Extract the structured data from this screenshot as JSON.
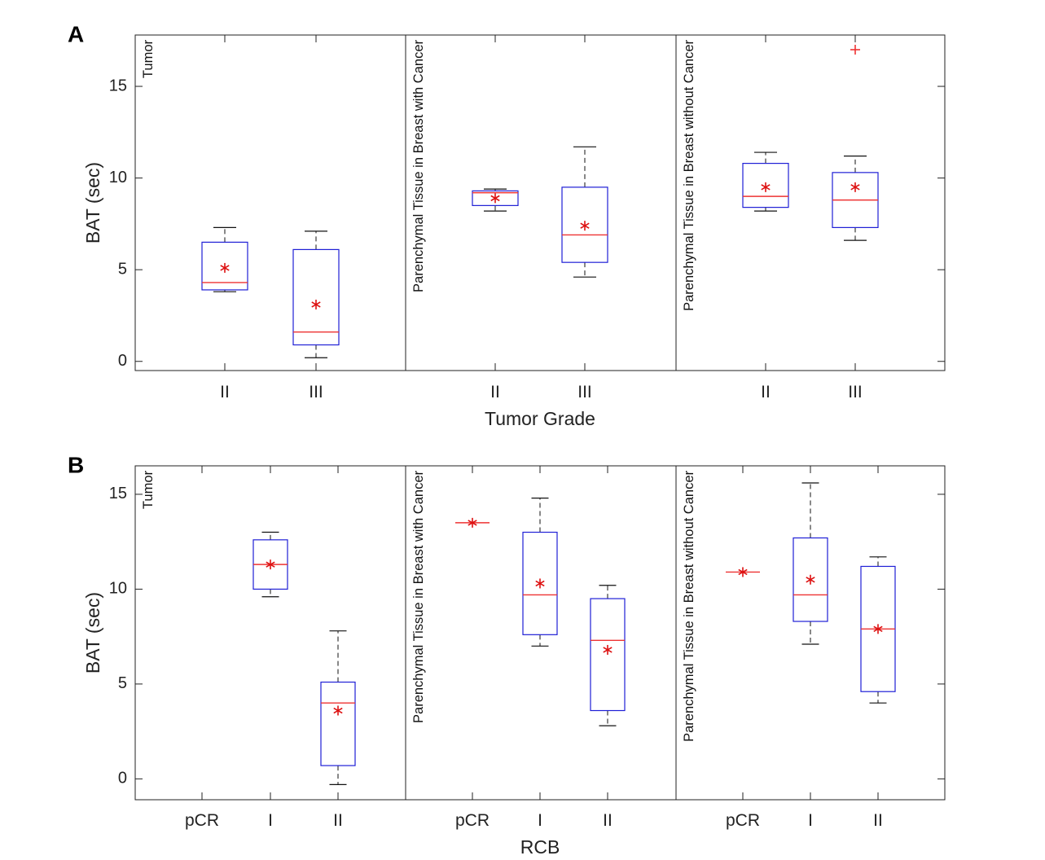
{
  "chart_data": [
    {
      "panel": "A",
      "type": "box",
      "ylabel": "BAT (sec)",
      "xlabel": "Tumor Grade",
      "ylim": [
        -0.5,
        17.8
      ],
      "yticks": [
        0,
        5,
        10,
        15
      ],
      "groups": [
        {
          "name": "Tumor",
          "categories": [
            "II",
            "III"
          ],
          "boxes": [
            {
              "category": "II",
              "whisker_low": 3.8,
              "q1": 3.9,
              "median": 4.3,
              "q3": 6.5,
              "whisker_high": 7.3,
              "mean": 5.1,
              "outliers": []
            },
            {
              "category": "III",
              "whisker_low": 0.2,
              "q1": 0.9,
              "median": 1.6,
              "q3": 6.1,
              "whisker_high": 7.1,
              "mean": 3.1,
              "outliers": []
            }
          ]
        },
        {
          "name": "Parenchymal Tissue in Breast with Cancer",
          "categories": [
            "II",
            "III"
          ],
          "boxes": [
            {
              "category": "II",
              "whisker_low": 8.2,
              "q1": 8.5,
              "median": 9.2,
              "q3": 9.3,
              "whisker_high": 9.4,
              "mean": 8.9,
              "outliers": []
            },
            {
              "category": "III",
              "whisker_low": 4.6,
              "q1": 5.4,
              "median": 6.9,
              "q3": 9.5,
              "whisker_high": 11.7,
              "mean": 7.4,
              "outliers": []
            }
          ]
        },
        {
          "name": "Parenchymal Tissue in Breast without Cancer",
          "categories": [
            "II",
            "III"
          ],
          "boxes": [
            {
              "category": "II",
              "whisker_low": 8.2,
              "q1": 8.4,
              "median": 9.0,
              "q3": 10.8,
              "whisker_high": 11.4,
              "mean": 9.5,
              "outliers": []
            },
            {
              "category": "III",
              "whisker_low": 6.6,
              "q1": 7.3,
              "median": 8.8,
              "q3": 10.3,
              "whisker_high": 11.2,
              "mean": 9.5,
              "outliers": [
                17.0
              ]
            }
          ]
        }
      ]
    },
    {
      "panel": "B",
      "type": "box",
      "ylabel": "BAT (sec)",
      "xlabel": "RCB",
      "ylim": [
        -1.1,
        16.5
      ],
      "yticks": [
        0,
        5,
        10,
        15
      ],
      "groups": [
        {
          "name": "Tumor",
          "categories": [
            "pCR",
            "I",
            "II"
          ],
          "boxes": [
            null,
            {
              "category": "I",
              "whisker_low": 9.6,
              "q1": 10.0,
              "median": 11.3,
              "q3": 12.6,
              "whisker_high": 13.0,
              "mean": 11.3,
              "outliers": []
            },
            {
              "category": "II",
              "whisker_low": -0.3,
              "q1": 0.7,
              "median": 4.0,
              "q3": 5.1,
              "whisker_high": 7.8,
              "mean": 3.6,
              "outliers": []
            }
          ]
        },
        {
          "name": "Parenchymal Tissue in Breast with Cancer",
          "categories": [
            "pCR",
            "I",
            "II"
          ],
          "boxes": [
            {
              "category": "pCR",
              "whisker_low": 13.5,
              "q1": 13.5,
              "median": 13.5,
              "q3": 13.5,
              "whisker_high": 13.5,
              "mean": 13.5,
              "outliers": []
            },
            {
              "category": "I",
              "whisker_low": 7.0,
              "q1": 7.6,
              "median": 9.7,
              "q3": 13.0,
              "whisker_high": 14.8,
              "mean": 10.3,
              "outliers": []
            },
            {
              "category": "II",
              "whisker_low": 2.8,
              "q1": 3.6,
              "median": 7.3,
              "q3": 9.5,
              "whisker_high": 10.2,
              "mean": 6.8,
              "outliers": []
            }
          ]
        },
        {
          "name": "Parenchymal Tissue in Breast without Cancer",
          "categories": [
            "pCR",
            "I",
            "II"
          ],
          "boxes": [
            {
              "category": "pCR",
              "whisker_low": 10.9,
              "q1": 10.9,
              "median": 10.9,
              "q3": 10.9,
              "whisker_high": 10.9,
              "mean": 10.9,
              "outliers": []
            },
            {
              "category": "I",
              "whisker_low": 7.1,
              "q1": 8.3,
              "median": 9.7,
              "q3": 12.7,
              "whisker_high": 15.6,
              "mean": 10.5,
              "outliers": []
            },
            {
              "category": "II",
              "whisker_low": 4.0,
              "q1": 4.6,
              "median": 7.9,
              "q3": 11.2,
              "whisker_high": 11.7,
              "mean": 7.9,
              "outliers": []
            }
          ]
        }
      ]
    }
  ],
  "colors": {
    "box": "#1f1fd6",
    "median": "#ee3333",
    "mean_marker": "#dd1111",
    "whisker": "#111111",
    "axes": "#222222"
  }
}
